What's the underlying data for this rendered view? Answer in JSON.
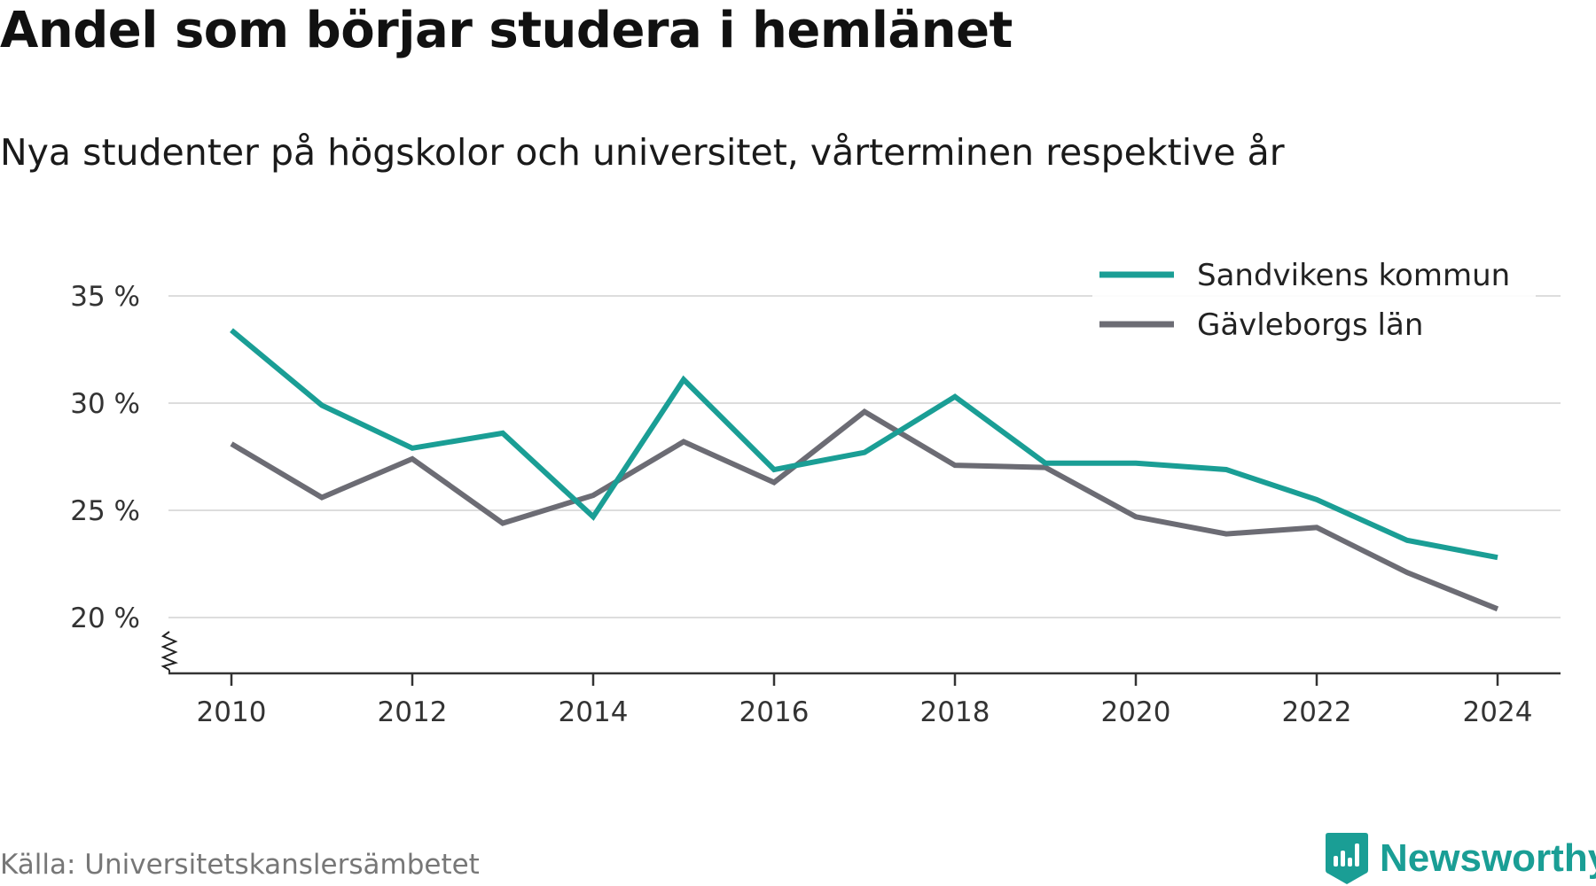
{
  "colors": {
    "teal": "#1a9e95",
    "gray": "#6c6c74",
    "grid": "#dddddd",
    "axis": "#333333"
  },
  "brand": {
    "name": "Newsworthy",
    "icon": "bar-chart-badge-icon"
  },
  "source": "Källa: Universitetskanslersämbetet",
  "chart_data": {
    "type": "line",
    "title": "Andel som börjar studera i hemlänet",
    "subtitle": "Nya studenter på högskolor och universitet, vårterminen respektive år",
    "xlabel": "",
    "ylabel": "",
    "x": [
      2010,
      2011,
      2012,
      2013,
      2014,
      2015,
      2016,
      2017,
      2018,
      2019,
      2020,
      2021,
      2022,
      2023,
      2024
    ],
    "xticks": [
      2010,
      2012,
      2014,
      2016,
      2018,
      2020,
      2022,
      2024
    ],
    "yticks": [
      20,
      25,
      30,
      35
    ],
    "ytick_labels": [
      "20 %",
      "25 %",
      "30 %",
      "35 %"
    ],
    "ylim": [
      17.4,
      35
    ],
    "xlim": [
      2009.3,
      2024.7
    ],
    "axis_break": true,
    "grid": "horizontal",
    "legend_position": "top-right",
    "series": [
      {
        "name": "Sandvikens kommun",
        "color": "#1a9e95",
        "values": [
          33.4,
          29.9,
          27.9,
          28.6,
          24.7,
          31.1,
          26.9,
          27.7,
          30.3,
          27.2,
          27.2,
          26.9,
          25.5,
          23.6,
          22.8
        ]
      },
      {
        "name": "Gävleborgs län",
        "color": "#6c6c74",
        "values": [
          28.1,
          25.6,
          27.4,
          24.4,
          25.7,
          28.2,
          26.3,
          29.6,
          27.1,
          27.0,
          24.7,
          23.9,
          24.2,
          22.1,
          20.4
        ]
      }
    ]
  }
}
